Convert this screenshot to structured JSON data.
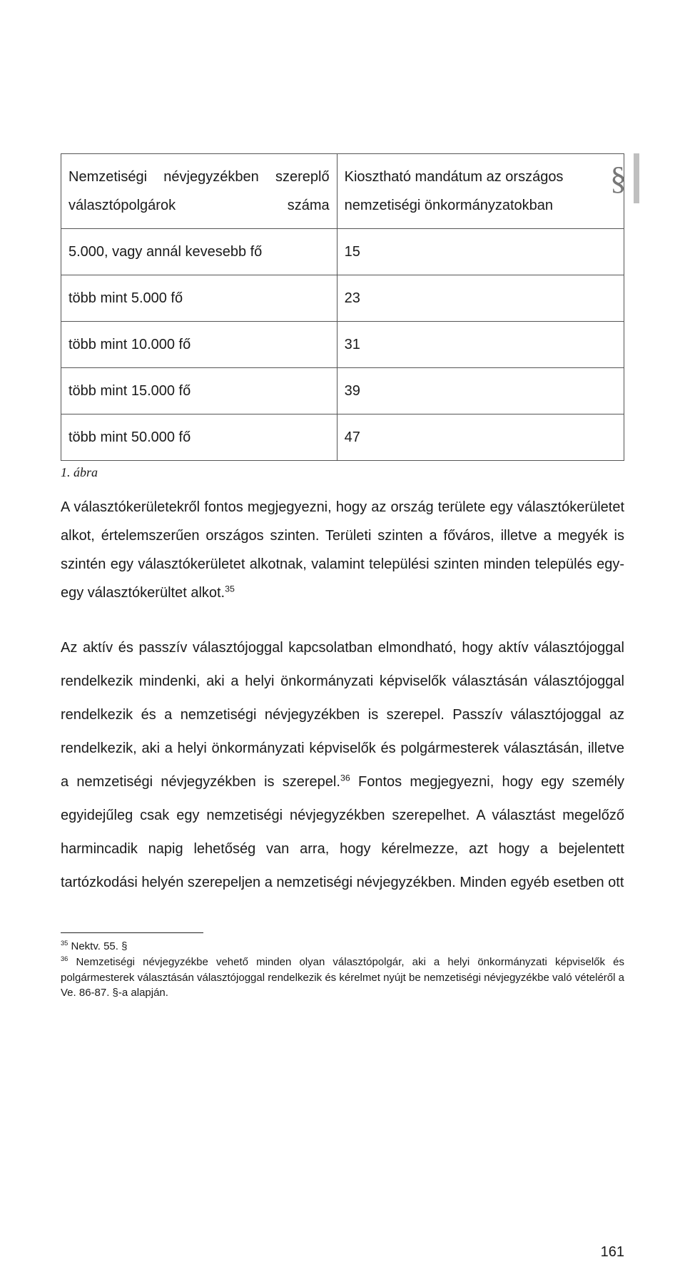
{
  "marker": {
    "sign": "§"
  },
  "table": {
    "header": {
      "left": "Nemzetiségi névjegyzékben szereplő választópolgárok száma",
      "right": "Kiosztható mandátum az országos nemzetiségi önkormányzatokban"
    },
    "rows": [
      {
        "left": "5.000, vagy annál kevesebb fő",
        "right": "15"
      },
      {
        "left": "több mint 5.000 fő",
        "right": "23"
      },
      {
        "left": "több mint 10.000 fő",
        "right": "31"
      },
      {
        "left": "több mint 15.000 fő",
        "right": "39"
      },
      {
        "left": "több mint 50.000 fő",
        "right": "47"
      }
    ],
    "caption": "1. ábra"
  },
  "para1": {
    "t1": "A választókerületekről fontos megjegyezni, hogy az ország területe egy választókerületet alkot, értelemszerűen országos szinten. Területi szinten a főváros, illetve a megyék is szintén egy választókerületet alkotnak, valamint települési szinten minden település egy-egy választókerültet alkot.",
    "sup1": "35"
  },
  "para2": {
    "t1": "Az aktív és passzív választójoggal kapcsolatban elmondható, hogy aktív választójoggal rendelkezik mindenki, aki a helyi önkormányzati képviselők választásán választójoggal rendelkezik és a nemzetiségi névjegyzékben is szerepel. Passzív választójoggal az rendelkezik, aki a helyi önkormányzati képviselők és polgármesterek választásán, illetve a nemzetiségi névjegyzékben is szerepel.",
    "sup1": "36",
    "t2": " Fontos megjegyezni, hogy egy személy egyidejűleg csak egy nemzetiségi névjegyzékben szerepelhet. A választást megelőző harmincadik napig lehetőség van arra, hogy kérelmezze, azt hogy a bejelentett tartózkodási helyén szerepeljen a nemzetiségi névjegyzékben. Minden egyéb esetben ott"
  },
  "footnotes": {
    "f35": {
      "num": "35",
      "text": " Nektv. 55. §"
    },
    "f36": {
      "num": "36",
      "text": " Nemzetiségi névjegyzékbe vehető minden olyan választópolgár, aki a helyi önkormányzati képviselők és polgármesterek választásán választójoggal rendelkezik és kérelmet nyújt be nemzetiségi névjegyzékbe való vételéről a Ve. 86-87. §-a alapján."
    }
  },
  "pagenum": "161"
}
